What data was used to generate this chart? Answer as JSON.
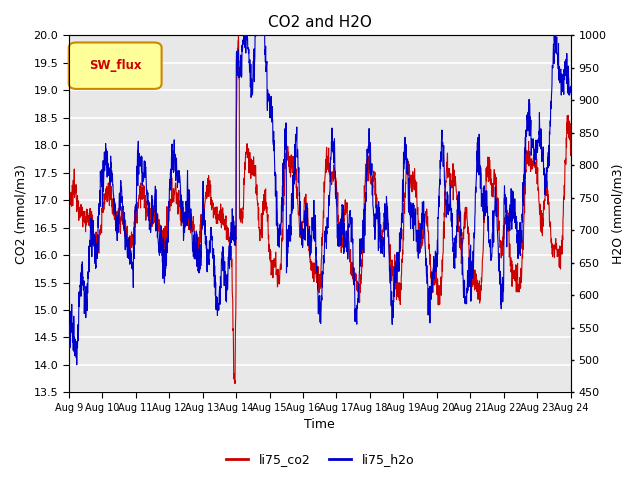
{
  "title": "CO2 and H2O",
  "xlabel": "Time",
  "ylabel_left": "CO2 (mmol/m3)",
  "ylabel_right": "H2O (mmol/m3)",
  "ylim_left": [
    13.5,
    20.0
  ],
  "ylim_right": [
    450,
    1000
  ],
  "yticks_left": [
    13.5,
    14.0,
    14.5,
    15.0,
    15.5,
    16.0,
    16.5,
    17.0,
    17.5,
    18.0,
    18.5,
    19.0,
    19.5,
    20.0
  ],
  "yticks_right": [
    450,
    500,
    550,
    600,
    650,
    700,
    750,
    800,
    850,
    900,
    950,
    1000
  ],
  "xlim_days": [
    0,
    15
  ],
  "xtick_labels": [
    "Aug 9",
    "Aug 10",
    "Aug 11",
    "Aug 12",
    "Aug 13",
    "Aug 14",
    "Aug 15",
    "Aug 16",
    "Aug 17",
    "Aug 18",
    "Aug 19",
    "Aug 20",
    "Aug 21",
    "Aug 22",
    "Aug 23",
    "Aug 24"
  ],
  "color_co2": "#cc0000",
  "color_h2o": "#0000cc",
  "legend_label_co2": "li75_co2",
  "legend_label_h2o": "li75_h2o",
  "sw_flux_box_facecolor": "#ffff99",
  "sw_flux_text_color": "#cc0000",
  "sw_flux_edge_color": "#cc8800",
  "plot_bg_color": "#e8e8e8",
  "grid_color": "#ffffff",
  "fig_bg_color": "#ffffff"
}
